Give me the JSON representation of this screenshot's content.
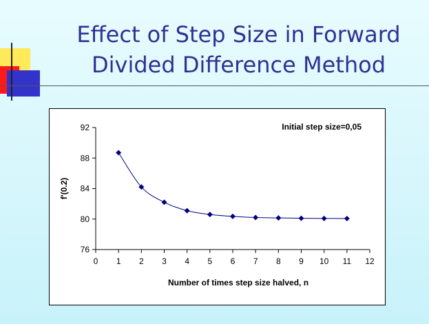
{
  "slide": {
    "title_line1": "Effect of Step Size in Forward",
    "title_line2": "Divided Difference Method"
  },
  "colors": {
    "title": "#2e3192",
    "series": "#00007f",
    "deco_yellow": "#ffea59",
    "deco_red": "#ff1a1a",
    "deco_blue": "#3333cc"
  },
  "chart_data": {
    "type": "line",
    "annotation": "Initial step size=0,05",
    "xlabel": "Number of times step size halved, n",
    "ylabel": "f'(0.2)",
    "xlim": [
      0,
      12
    ],
    "ylim": [
      76,
      92
    ],
    "x_ticks": [
      0,
      1,
      2,
      3,
      4,
      5,
      6,
      7,
      8,
      9,
      10,
      11,
      12
    ],
    "y_ticks": [
      76,
      80,
      84,
      88,
      92
    ],
    "grid": false,
    "legend": "none",
    "smooth": true,
    "series": [
      {
        "x": [
          1,
          2,
          3,
          4,
          5,
          6,
          7,
          8,
          9,
          10,
          11
        ],
        "y": [
          88.7,
          84.2,
          82.2,
          81.1,
          80.6,
          80.35,
          80.2,
          80.15,
          80.1,
          80.08,
          80.07
        ]
      }
    ]
  }
}
